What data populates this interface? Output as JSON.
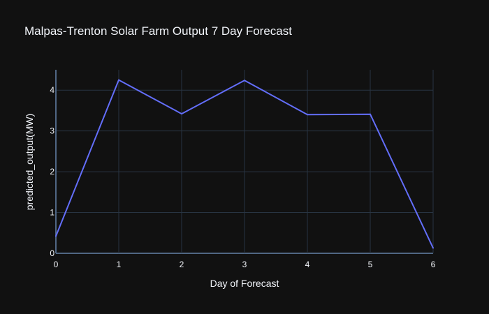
{
  "chart_data": {
    "type": "line",
    "title": "Malpas-Trenton Solar Farm Output 7 Day Forecast",
    "xlabel": "Day of Forecast",
    "ylabel": "predicted_output(MW)",
    "x": [
      0,
      1,
      2,
      3,
      4,
      5,
      6
    ],
    "series": [
      {
        "values": [
          0.42,
          4.25,
          3.42,
          4.24,
          3.4,
          3.41,
          0.13
        ]
      }
    ],
    "xlim": [
      0,
      6
    ],
    "ylim": [
      0,
      4.5
    ],
    "xticks": [
      0,
      1,
      2,
      3,
      4,
      5,
      6
    ],
    "yticks": [
      0,
      1,
      2,
      3,
      4
    ],
    "grid": true,
    "colors": {
      "background": "#111111",
      "grid": "#283442",
      "zeroline": "#506784",
      "line": "#636efa",
      "text": "#f2f5fa"
    }
  }
}
